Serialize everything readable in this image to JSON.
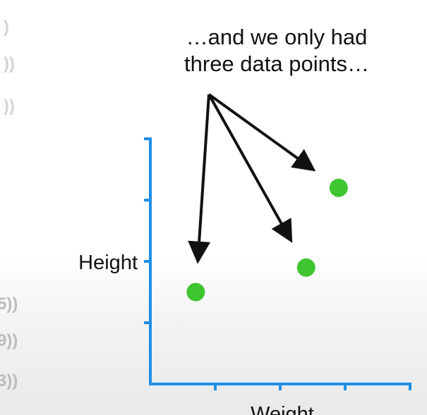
{
  "annotation": {
    "line1": "…and we only had",
    "line2": "three data points…"
  },
  "left_fragments": {
    "top": [
      ")",
      "))",
      "))"
    ],
    "bottom": [
      "5))",
      "9))",
      "3))"
    ]
  },
  "chart_data": {
    "type": "scatter",
    "xlabel": "Weight",
    "ylabel": "Height",
    "xlim": [
      0,
      4
    ],
    "ylim": [
      0,
      4
    ],
    "x_tick_count": 4,
    "y_tick_count": 4,
    "grid": false,
    "points": [
      {
        "x": 0.7,
        "y": 1.5
      },
      {
        "x": 2.4,
        "y": 1.9
      },
      {
        "x": 2.9,
        "y": 3.2
      }
    ],
    "colors": {
      "axis": "#1f8fe5",
      "point": "#3fc52f",
      "arrow": "#111111",
      "fragment_top": "#d4d4d4",
      "fragment_bottom": "#bdbdbd"
    }
  }
}
